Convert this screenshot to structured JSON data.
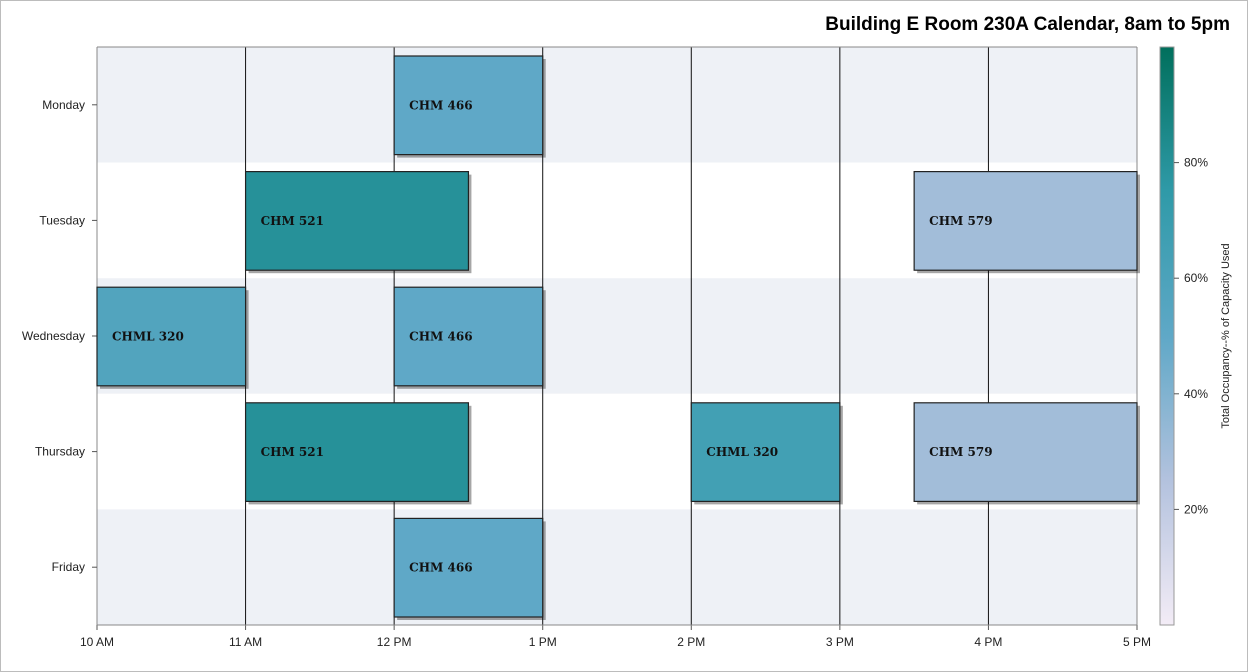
{
  "chart_data": {
    "type": "bar",
    "title": "Building E Room 230A Calendar, 8am to 5pm",
    "categories": [
      "Monday",
      "Tuesday",
      "Wednesday",
      "Thursday",
      "Friday"
    ],
    "x_ticks": [
      "10 AM",
      "11 AM",
      "12 PM",
      "1 PM",
      "2 PM",
      "3 PM",
      "4 PM",
      "5 PM"
    ],
    "xlim": [
      10,
      17
    ],
    "grid": true,
    "colorbar": {
      "title": "Total Occupancy--% of Capacity Used",
      "ticks": [
        "20%",
        "40%",
        "60%",
        "80%"
      ],
      "tick_values": [
        20,
        40,
        60,
        80
      ],
      "range": [
        0,
        100
      ],
      "colors": [
        "#f3ecf6",
        "#b3c2de",
        "#5fa8c7",
        "#2f9aa8",
        "#006f5c"
      ]
    },
    "bars": [
      {
        "day": "Monday",
        "start": 12,
        "end": 13,
        "label": "CHM 466",
        "occupancy": 50
      },
      {
        "day": "Tuesday",
        "start": 11,
        "end": 12.5,
        "label": "CHM 521",
        "occupancy": 80
      },
      {
        "day": "Tuesday",
        "start": 15.5,
        "end": 17,
        "label": "CHM 579",
        "occupancy": 30
      },
      {
        "day": "Wednesday",
        "start": 10,
        "end": 11,
        "label": "CHML 320",
        "occupancy": 57
      },
      {
        "day": "Wednesday",
        "start": 12,
        "end": 13,
        "label": "CHM 466",
        "occupancy": 50
      },
      {
        "day": "Thursday",
        "start": 11,
        "end": 12.5,
        "label": "CHM 521",
        "occupancy": 80
      },
      {
        "day": "Thursday",
        "start": 14,
        "end": 15,
        "label": "CHML 320",
        "occupancy": 65
      },
      {
        "day": "Thursday",
        "start": 15.5,
        "end": 17,
        "label": "CHM 579",
        "occupancy": 30
      },
      {
        "day": "Friday",
        "start": 12,
        "end": 13,
        "label": "CHM 466",
        "occupancy": 50
      }
    ]
  }
}
